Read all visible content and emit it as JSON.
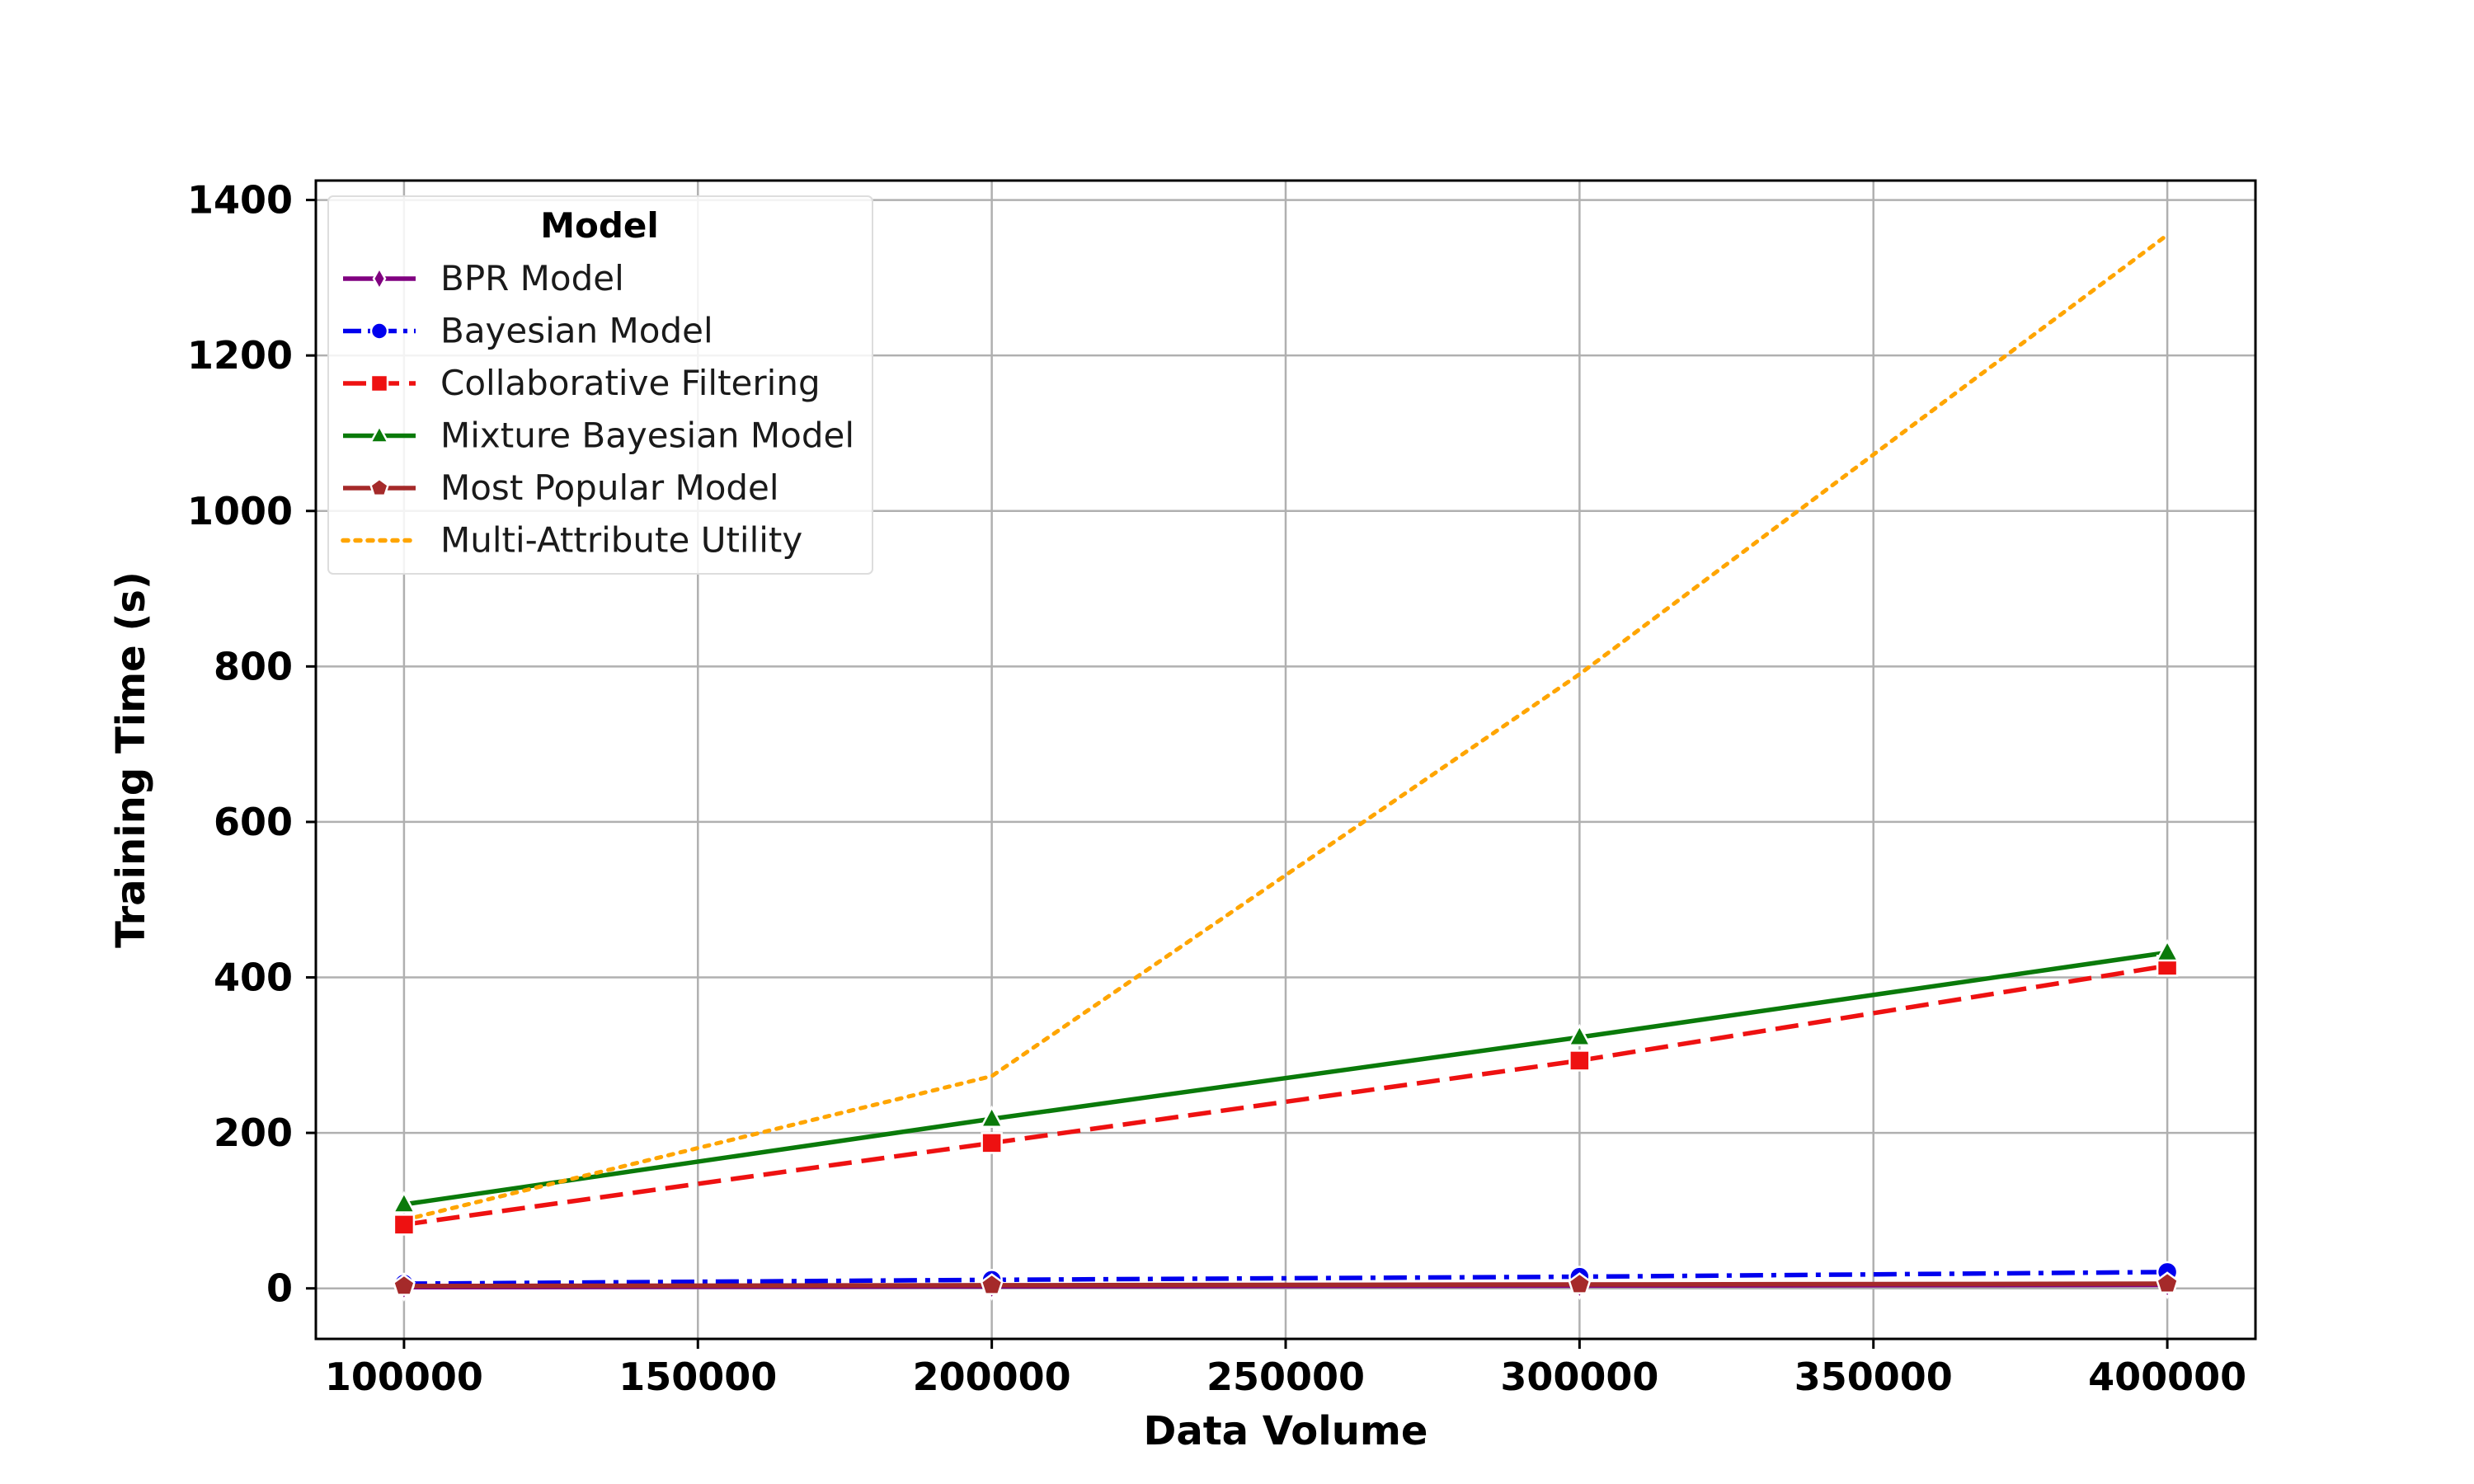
{
  "chart_data": {
    "type": "line",
    "title": "",
    "xlabel": "Data Volume",
    "ylabel": "Training Time (s)",
    "xlim": [
      85000,
      415000
    ],
    "ylim": [
      -65,
      1425
    ],
    "x": [
      100000,
      200000,
      300000,
      400000
    ],
    "x_ticks": [
      100000,
      150000,
      200000,
      250000,
      300000,
      350000,
      400000
    ],
    "x_tick_labels": [
      "100000",
      "150000",
      "200000",
      "250000",
      "300000",
      "350000",
      "400000"
    ],
    "y_ticks": [
      0,
      200,
      400,
      600,
      800,
      1000,
      1200,
      1400
    ],
    "y_tick_labels": [
      "0",
      "200",
      "400",
      "600",
      "800",
      "1000",
      "1200",
      "1400"
    ],
    "grid": true,
    "legend": {
      "title": "Model",
      "placement": "top-left"
    },
    "series": [
      {
        "name": "BPR Model",
        "values": [
          1.5,
          2.5,
          3.5,
          4.5
        ],
        "color": "#800080",
        "dash": "solid",
        "marker": "diamond"
      },
      {
        "name": "Bayesian Model",
        "values": [
          6,
          11,
          15,
          21
        ],
        "color": "#0000ee",
        "dash": "dashdot",
        "marker": "circle"
      },
      {
        "name": "Collaborative Filtering",
        "values": [
          82,
          187,
          293,
          415
        ],
        "color": "#ee1111",
        "dash": "dashed",
        "marker": "square"
      },
      {
        "name": "Mixture Bayesian Model",
        "values": [
          108,
          218,
          323,
          432
        ],
        "color": "#0a7a0a",
        "dash": "solid",
        "marker": "triangle"
      },
      {
        "name": "Most Popular Model",
        "values": [
          3,
          4,
          5,
          6
        ],
        "color": "#a52a2a",
        "dash": "solid",
        "marker": "pentagon"
      },
      {
        "name": "Multi-Attribute Utility",
        "values": [
          88,
          273,
          790,
          1355
        ],
        "color": "#ffa500",
        "dash": "dotted",
        "marker": "none"
      }
    ]
  }
}
